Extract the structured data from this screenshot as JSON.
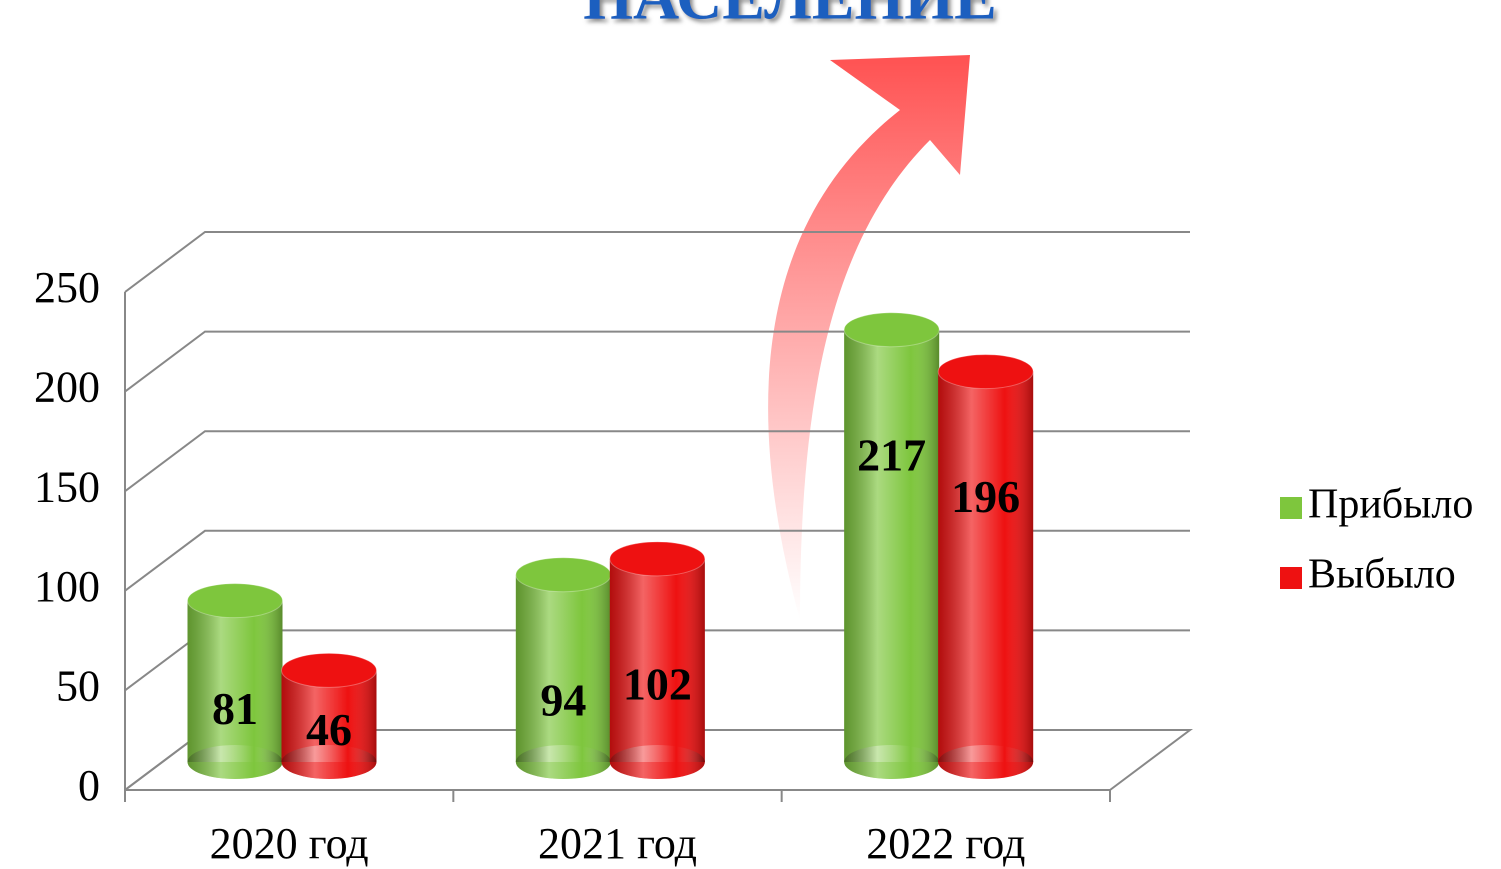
{
  "chart_data": {
    "type": "bar3d",
    "title": "НАСЕЛЕНИЕ",
    "categories": [
      "2020 год",
      "2021 год",
      "2022 год"
    ],
    "series": [
      {
        "name": "Прибыло",
        "color": "#7ec63d",
        "values": [
          81,
          94,
          217
        ]
      },
      {
        "name": "Выбыло",
        "color": "#ee1111",
        "values": [
          46,
          102,
          196
        ]
      }
    ],
    "ylim": [
      0,
      250
    ],
    "yticks": [
      0,
      50,
      100,
      150,
      200,
      250
    ],
    "grid": true,
    "legend": "right"
  }
}
